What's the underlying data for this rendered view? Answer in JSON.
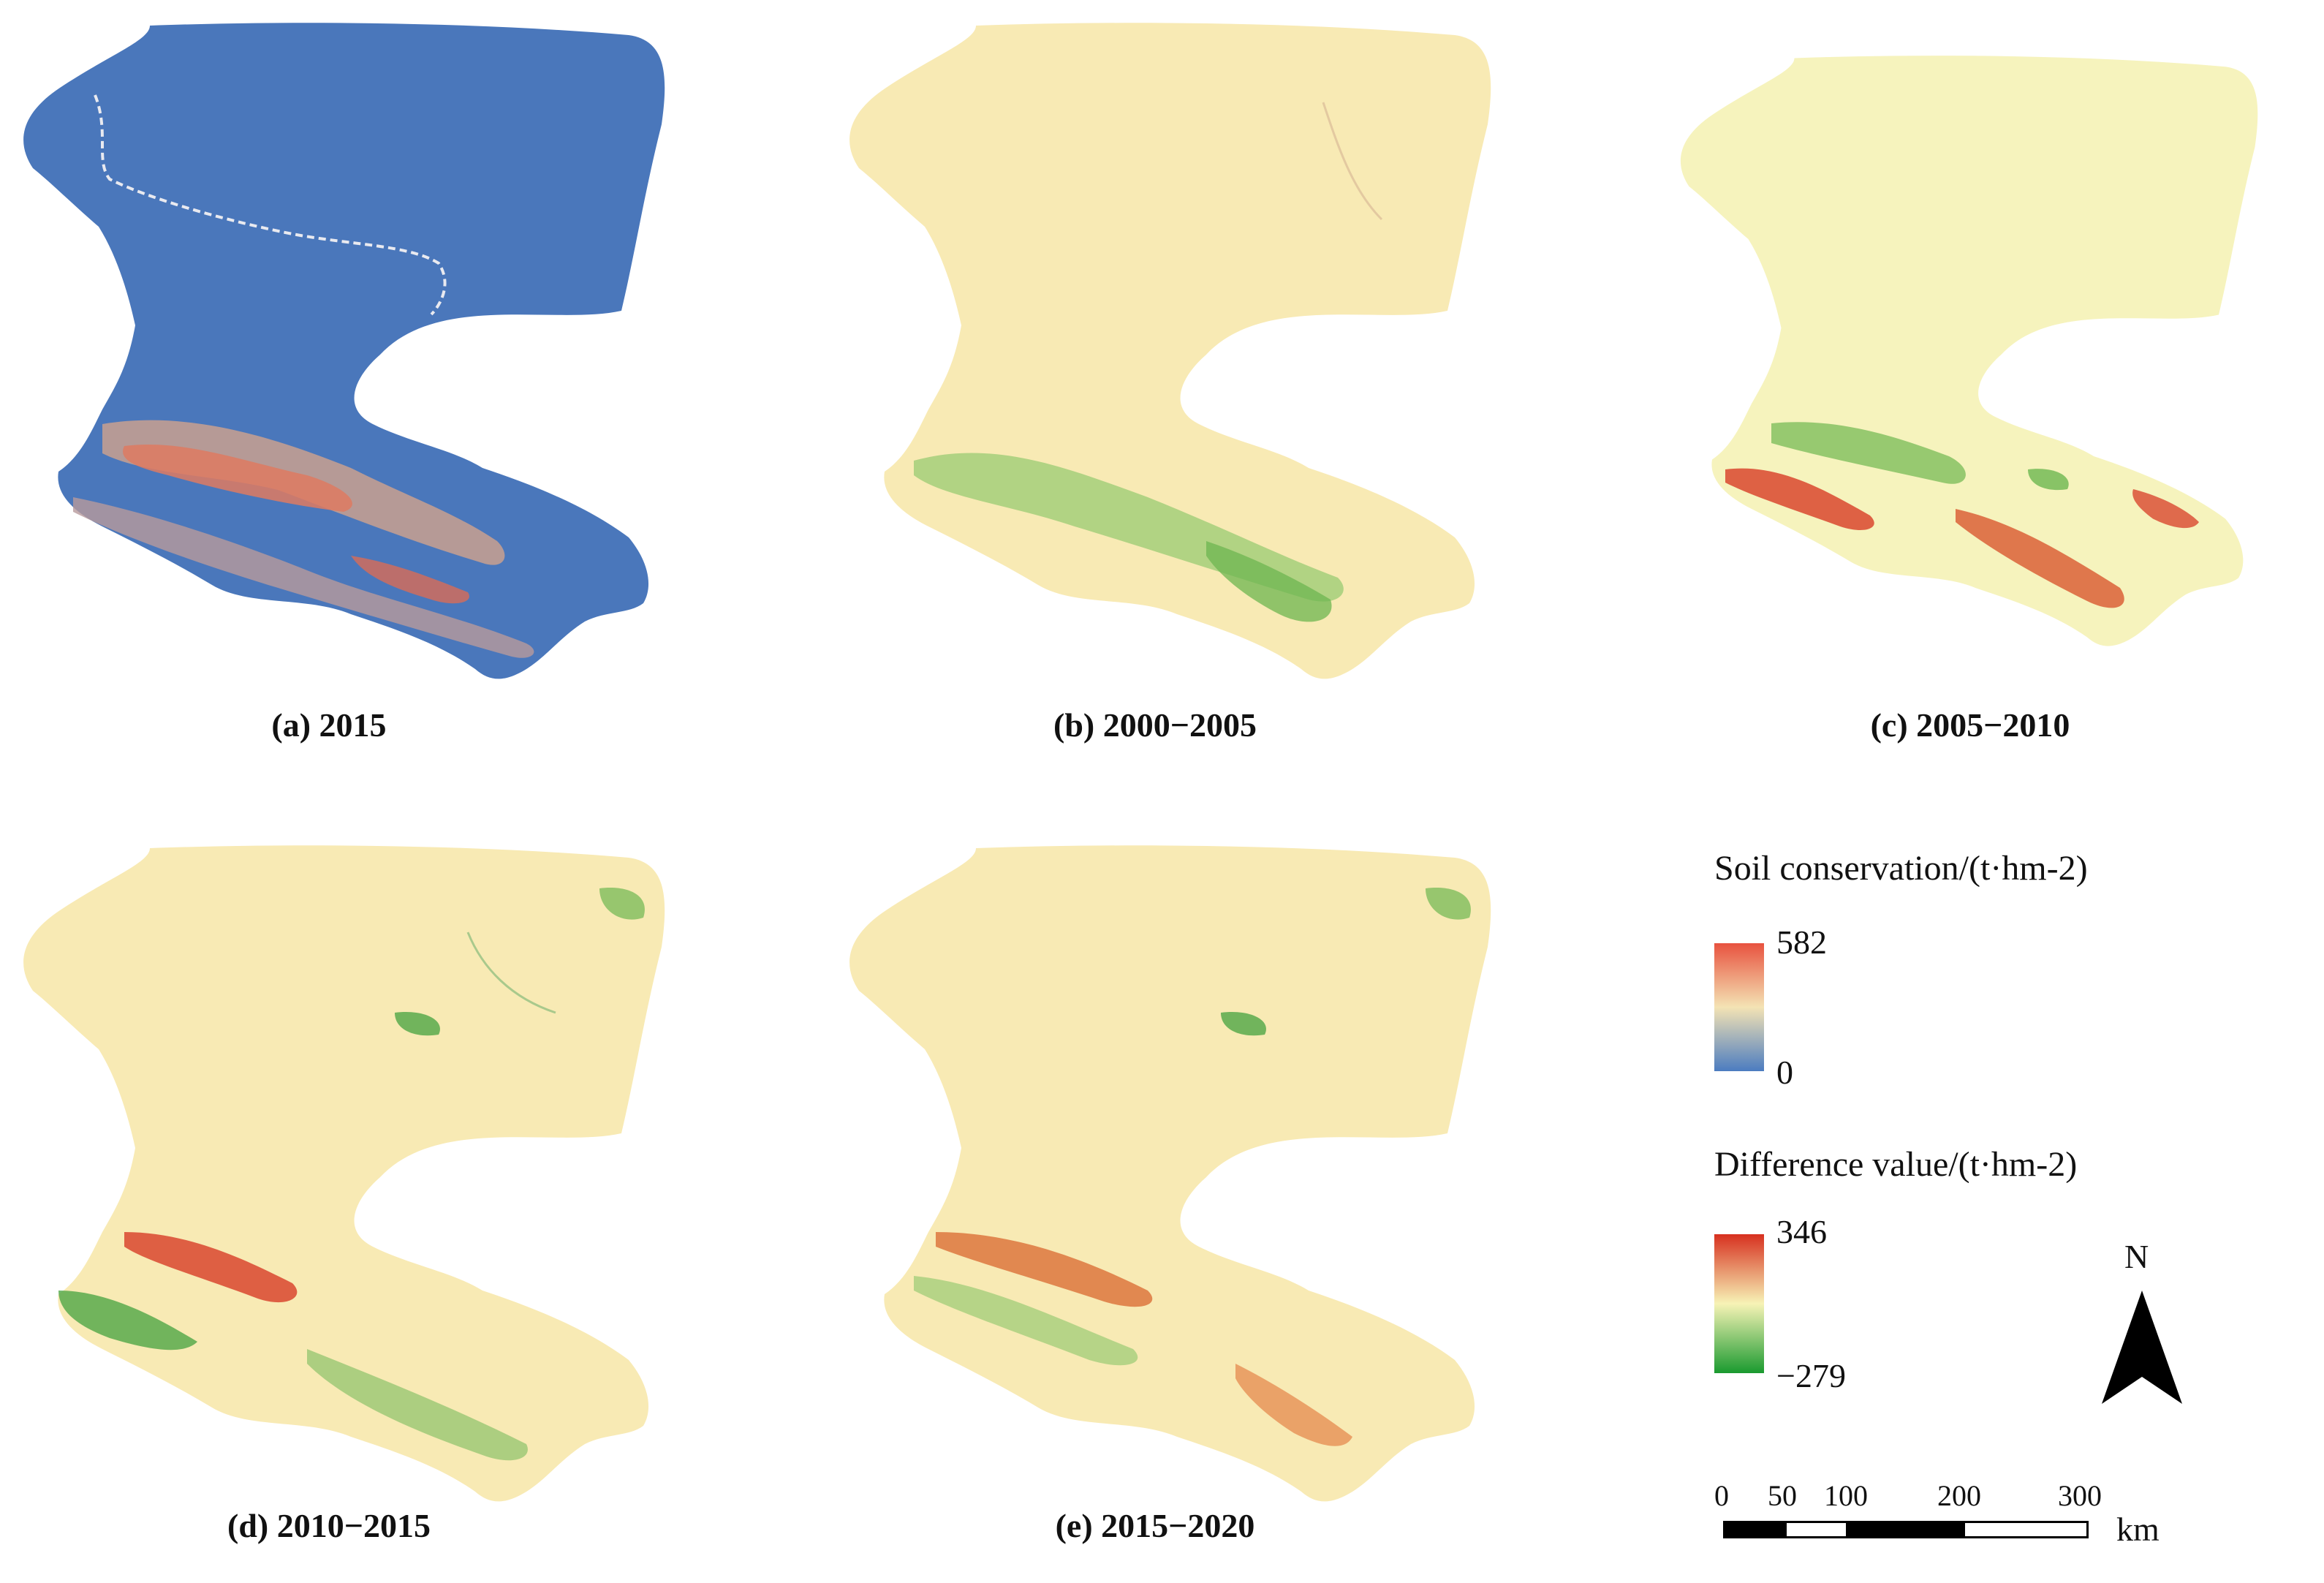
{
  "panels": [
    {
      "caption": "(a) 2015",
      "scheme": "soil"
    },
    {
      "caption": "(b) 2000−2005",
      "scheme": "diff_b"
    },
    {
      "caption": "(c) 2005−2010",
      "scheme": "diff_c"
    },
    {
      "caption": "(d) 2010−2015",
      "scheme": "diff_d"
    },
    {
      "caption": "(e) 2015−2020",
      "scheme": "diff_e"
    }
  ],
  "legend": {
    "soil": {
      "title": "Soil conservation/(t·hm-2)",
      "max": "582",
      "min": "0",
      "colors": [
        "#e8523f",
        "#f4e3b4",
        "#4b7cc0"
      ]
    },
    "diff": {
      "title": "Difference value/(t·hm-2)",
      "max": "346",
      "min": "−279",
      "colors": [
        "#d7301f",
        "#f7f3b6",
        "#1a9a2f"
      ]
    }
  },
  "north": {
    "label": "N"
  },
  "scalebar": {
    "ticks": [
      "0",
      "50",
      "100",
      "200",
      "300"
    ],
    "unit": "km"
  },
  "colors": {
    "soil_base": "#4a77bb",
    "diff_base": "#f8ebb4",
    "green": "#4fa646",
    "red": "#d9472f",
    "orange": "#ea7a4c"
  }
}
